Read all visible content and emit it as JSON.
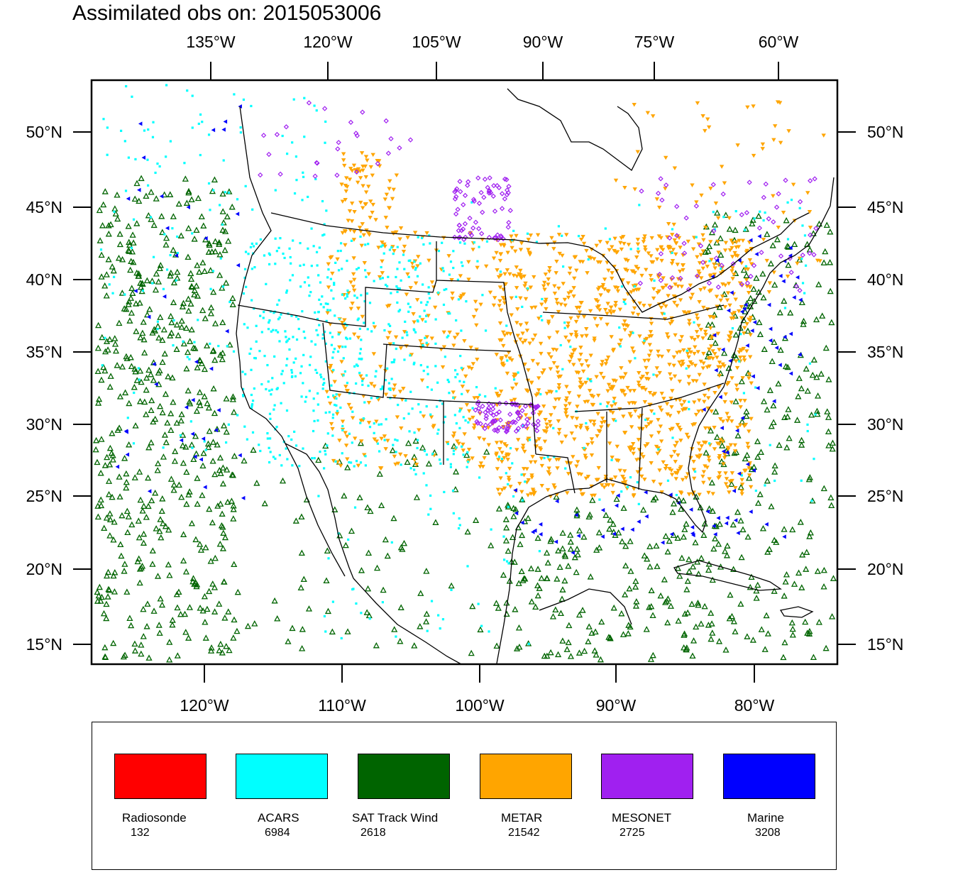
{
  "title": "Assimilated obs on: 2015053006",
  "top_lon_labels": [
    "135°W",
    "120°W",
    "105°W",
    "90°W",
    "75°W",
    "60°W"
  ],
  "bottom_lon_labels": [
    "120°W",
    "110°W",
    "100°W",
    "90°W",
    "80°W"
  ],
  "lat_labels": [
    "50°N",
    "45°N",
    "40°N",
    "35°N",
    "30°N",
    "25°N",
    "20°N",
    "15°N"
  ],
  "legend": [
    {
      "label": "Radiosonde",
      "count": "132",
      "color": "#ff0000"
    },
    {
      "label": "ACARS",
      "count": "6984",
      "color": "#00ffff"
    },
    {
      "label": "SAT Track Wind",
      "count": "2618",
      "color": "#006400"
    },
    {
      "label": "METAR",
      "count": "21542",
      "color": "#ffa500"
    },
    {
      "label": "MESONET",
      "count": "2725",
      "color": "#a020f0"
    },
    {
      "label": "Marine",
      "count": "3208",
      "color": "#0000ff"
    }
  ],
  "colors": {
    "radiosonde": "#ff0000",
    "acars": "#00ffff",
    "sat_track_wind": "#006400",
    "metar": "#ffa500",
    "mesonet": "#a020f0",
    "marine": "#0000ff",
    "coastline": "#000000"
  }
}
